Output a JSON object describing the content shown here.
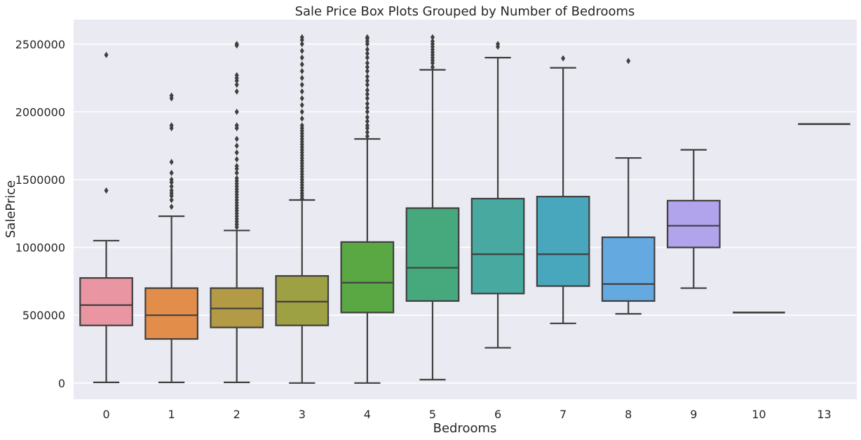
{
  "chart_data": {
    "type": "box",
    "title": "Sale Price Box Plots Grouped by Number of Bedrooms",
    "xlabel": "Bedrooms",
    "ylabel": "SalePrice",
    "ylim": [
      -120000,
      2680000
    ],
    "yticks": [
      0,
      500000,
      1000000,
      1500000,
      2000000,
      2500000
    ],
    "ytick_labels": [
      "0",
      "500000",
      "1000000",
      "1500000",
      "2000000",
      "2500000"
    ],
    "grid": "horizontal",
    "background": "#eaeaf2",
    "box_edge_color": "#3f3f3f",
    "categories": [
      "0",
      "1",
      "2",
      "3",
      "4",
      "5",
      "6",
      "7",
      "8",
      "9",
      "10",
      "13"
    ],
    "boxes": [
      {
        "category": "0",
        "color": "#ea96a2",
        "whisker_low": 5000,
        "q1": 425000,
        "median": 575000,
        "q3": 775000,
        "whisker_high": 1050000,
        "outliers": [
          1420000,
          2420000
        ]
      },
      {
        "category": "1",
        "color": "#e28e4a",
        "whisker_low": 5000,
        "q1": 325000,
        "median": 500000,
        "q3": 700000,
        "whisker_high": 1230000,
        "outliers": [
          1300000,
          1350000,
          1380000,
          1400000,
          1420000,
          1450000,
          1480000,
          1500000,
          1550000,
          1630000,
          1880000,
          1900000,
          2100000,
          2120000
        ]
      },
      {
        "category": "2",
        "color": "#b39a45",
        "whisker_low": 5000,
        "q1": 410000,
        "median": 550000,
        "q3": 700000,
        "whisker_high": 1125000,
        "outliers": [
          1150000,
          1170000,
          1190000,
          1210000,
          1230000,
          1250000,
          1270000,
          1290000,
          1310000,
          1330000,
          1350000,
          1370000,
          1390000,
          1410000,
          1430000,
          1450000,
          1470000,
          1490000,
          1510000,
          1550000,
          1580000,
          1600000,
          1650000,
          1700000,
          1750000,
          1800000,
          1880000,
          1900000,
          2000000,
          2150000,
          2200000,
          2230000,
          2250000,
          2270000,
          2490000,
          2500000
        ]
      },
      {
        "category": "3",
        "color": "#9ea143",
        "whisker_low": 0,
        "q1": 425000,
        "median": 600000,
        "q3": 790000,
        "whisker_high": 1350000,
        "outliers": [
          1360000,
          1380000,
          1400000,
          1420000,
          1440000,
          1460000,
          1480000,
          1500000,
          1520000,
          1540000,
          1560000,
          1580000,
          1600000,
          1620000,
          1640000,
          1660000,
          1680000,
          1700000,
          1720000,
          1740000,
          1760000,
          1780000,
          1800000,
          1820000,
          1840000,
          1860000,
          1880000,
          1900000,
          1950000,
          2000000,
          2050000,
          2100000,
          2150000,
          2200000,
          2250000,
          2300000,
          2350000,
          2400000,
          2450000,
          2500000,
          2530000,
          2550000
        ]
      },
      {
        "category": "4",
        "color": "#5aa843",
        "whisker_low": 0,
        "q1": 520000,
        "median": 740000,
        "q3": 1040000,
        "whisker_high": 1800000,
        "outliers": [
          1820000,
          1850000,
          1880000,
          1900000,
          1930000,
          1960000,
          2000000,
          2030000,
          2060000,
          2100000,
          2130000,
          2160000,
          2200000,
          2230000,
          2260000,
          2300000,
          2330000,
          2360000,
          2400000,
          2430000,
          2460000,
          2500000,
          2520000,
          2540000,
          2550000
        ]
      },
      {
        "category": "5",
        "color": "#45a97d",
        "whisker_low": 25000,
        "q1": 605000,
        "median": 850000,
        "q3": 1290000,
        "whisker_high": 2310000,
        "outliers": [
          2330000,
          2360000,
          2380000,
          2400000,
          2420000,
          2440000,
          2460000,
          2480000,
          2500000,
          2520000,
          2550000
        ]
      },
      {
        "category": "6",
        "color": "#47a9a0",
        "whisker_low": 260000,
        "q1": 660000,
        "median": 950000,
        "q3": 1360000,
        "whisker_high": 2400000,
        "outliers": [
          2480000,
          2500000
        ]
      },
      {
        "category": "7",
        "color": "#48a7bc",
        "whisker_low": 440000,
        "q1": 715000,
        "median": 950000,
        "q3": 1375000,
        "whisker_high": 2325000,
        "outliers": [
          2395000
        ]
      },
      {
        "category": "8",
        "color": "#64aae0",
        "whisker_low": 510000,
        "q1": 605000,
        "median": 730000,
        "q3": 1075000,
        "whisker_high": 1660000,
        "outliers": [
          2375000
        ]
      },
      {
        "category": "9",
        "color": "#b1a4ec",
        "whisker_low": 700000,
        "q1": 1000000,
        "median": 1160000,
        "q3": 1345000,
        "whisker_high": 1720000,
        "outliers": []
      },
      {
        "category": "10",
        "color": "#d89be8",
        "whisker_low": 520000,
        "q1": 520000,
        "median": 520000,
        "q3": 520000,
        "whisker_high": 520000,
        "outliers": []
      },
      {
        "category": "13",
        "color": "#e9a0c9",
        "whisker_low": 1910000,
        "q1": 1910000,
        "median": 1910000,
        "q3": 1910000,
        "whisker_high": 1910000,
        "outliers": []
      }
    ]
  }
}
